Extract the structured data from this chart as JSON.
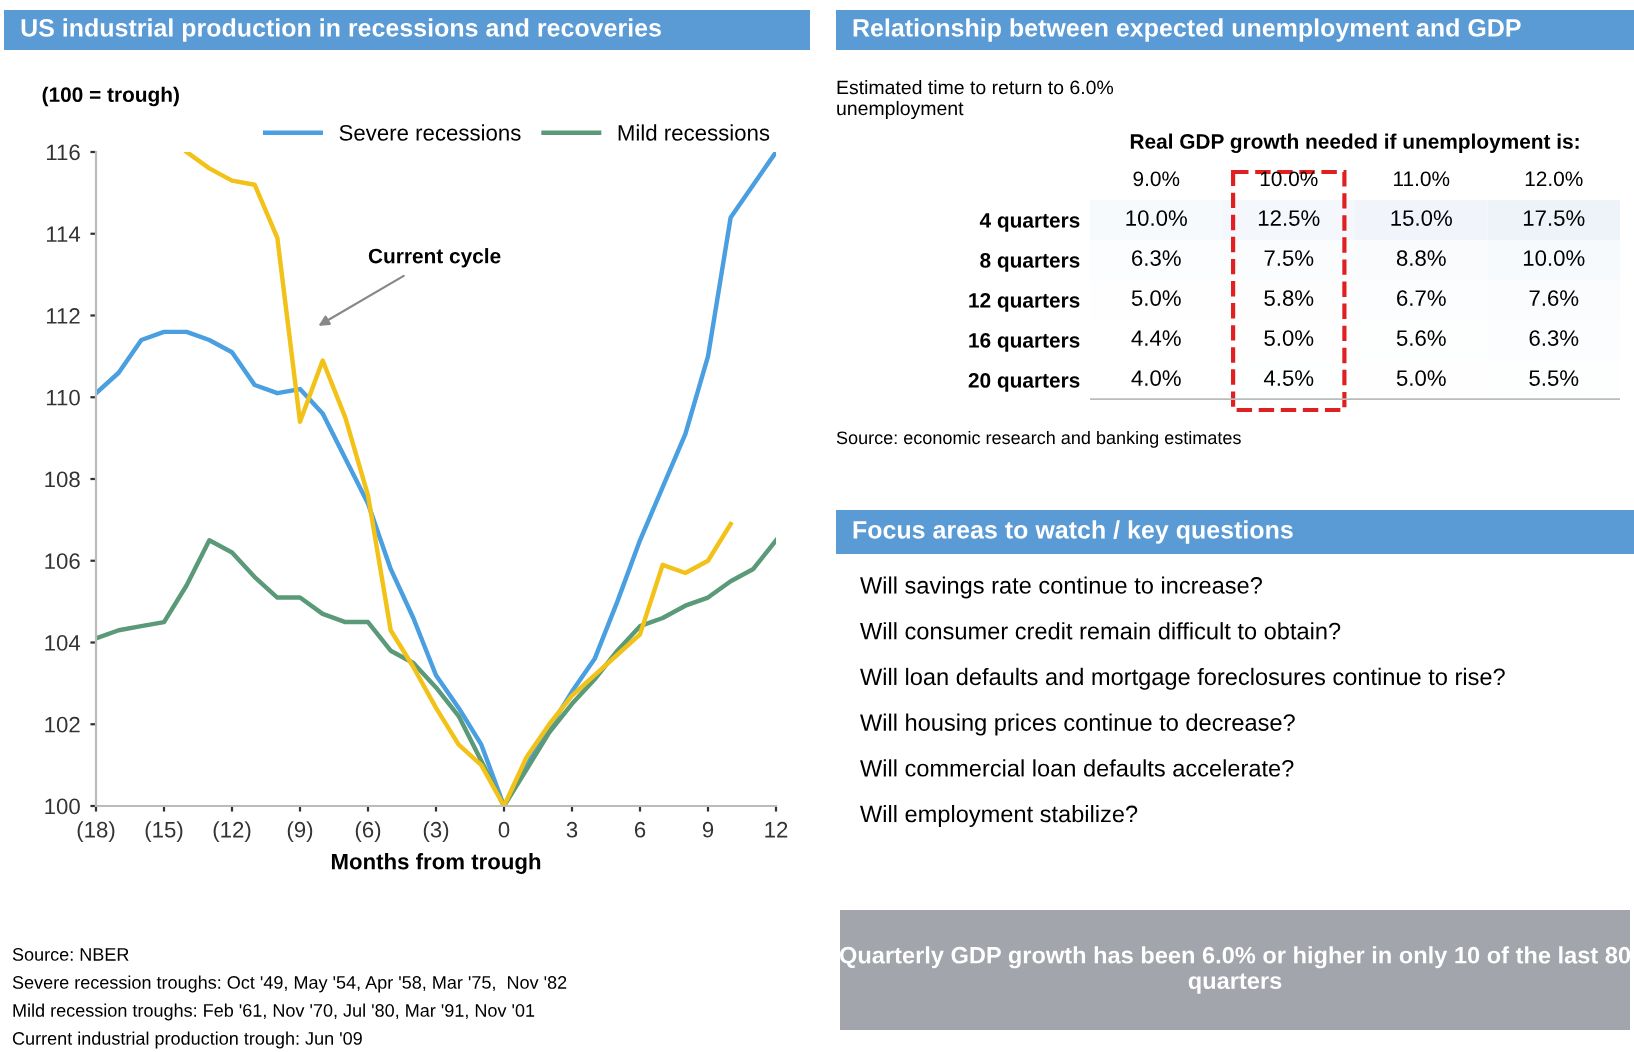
{
  "chart_data": [
    {
      "type": "line",
      "title": "US industrial production in recessions and recoveries",
      "ylabel": "(100 = trough)",
      "xlabel": "Months from trough",
      "x": [
        -18,
        -17,
        -16,
        -15,
        -14,
        -13,
        -12,
        -11,
        -10,
        -9,
        -8,
        -7,
        -6,
        -5,
        -4,
        -3,
        -2,
        -1,
        0,
        1,
        2,
        3,
        4,
        5,
        6,
        7,
        8,
        9,
        10,
        11,
        12
      ],
      "series": [
        {
          "name": "Severe recessions",
          "color": "#4a9fe0",
          "values": [
            110.1,
            110.6,
            111.4,
            111.6,
            111.6,
            111.4,
            111.1,
            110.3,
            110.1,
            110.2,
            109.6,
            108.5,
            107.4,
            105.8,
            104.6,
            103.2,
            102.4,
            101.5,
            100,
            101.0,
            101.9,
            102.8,
            103.6,
            105.0,
            106.5,
            107.8,
            109.1,
            111.0,
            114.4,
            115.2,
            116.0
          ]
        },
        {
          "name": "Mild recessions",
          "color": "#5a9a78",
          "values": [
            104.1,
            104.3,
            104.4,
            104.5,
            105.4,
            106.5,
            106.2,
            105.6,
            105.1,
            105.1,
            104.7,
            104.5,
            104.5,
            103.8,
            103.5,
            102.9,
            102.2,
            101.1,
            100,
            100.9,
            101.8,
            102.5,
            103.1,
            103.8,
            104.4,
            104.6,
            104.9,
            105.1,
            105.5,
            105.8,
            106.5
          ]
        },
        {
          "color": "#f2c218",
          "x": [
            -14,
            -13,
            -12,
            -11,
            -10,
            -9,
            -8,
            -7,
            -6,
            -5,
            -4,
            -3,
            -2,
            -1,
            0,
            1,
            2,
            3,
            4,
            5,
            6,
            7,
            8,
            9,
            10
          ],
          "values": [
            116.0,
            115.6,
            115.3,
            115.2,
            113.9,
            109.4,
            110.9,
            109.5,
            107.6,
            104.3,
            103.4,
            102.4,
            101.5,
            101.0,
            100,
            101.2,
            102.0,
            102.7,
            103.2,
            103.7,
            104.2,
            105.9,
            105.7,
            106.0,
            106.9
          ]
        }
      ],
      "xlim": [
        -18,
        12
      ],
      "ylim": [
        100,
        116
      ],
      "xticks": [
        {
          "value": -18,
          "label": "(18)"
        },
        {
          "value": -15,
          "label": "(15)"
        },
        {
          "value": -12,
          "label": "(12)"
        },
        {
          "value": -9,
          "label": "(9)"
        },
        {
          "value": -6,
          "label": "(6)"
        },
        {
          "value": -3,
          "label": "(3)"
        },
        0,
        3,
        6,
        9,
        12
      ],
      "yticks": [
        100,
        102,
        104,
        106,
        108,
        110,
        112,
        114,
        116
      ],
      "legend": "top",
      "annotations": [
        "Current cycle",
        "Source: NBER",
        "Severe recession troughs: Oct '49, May '54, Apr '58, Mar '75,  Nov '82",
        "Mild recession troughs: Feb '61, Nov '70, Jul '80, Mar '91, Nov '01",
        "Current industrial production trough: Jun '09"
      ]
    },
    {
      "type": "heatmap",
      "title": "Relationship between expected unemployment and GDP",
      "xlabel": "Real GDP growth needed if unemployment is:",
      "ylabel": "Estimated time to return to 6.0% unemployment",
      "categories": [
        "9.0%",
        "10.0%",
        "11.0%",
        "12.0%"
      ],
      "y_categories": [
        "4 quarters",
        "8 quarters",
        "12 quarters",
        "16 quarters",
        "20 quarters"
      ],
      "cells": [
        [
          10.0,
          12.5,
          15.0,
          17.5
        ],
        [
          6.3,
          7.5,
          8.8,
          10.0
        ],
        [
          5.0,
          5.8,
          6.7,
          7.6
        ],
        [
          4.4,
          5.0,
          5.6,
          6.3
        ],
        [
          4.0,
          4.5,
          5.0,
          5.5
        ]
      ],
      "cell_labels": [
        [
          "10.0%",
          "12.5%",
          "15.0%",
          "17.5%"
        ],
        [
          "6.3%",
          "7.5%",
          "8.8%",
          "10.0%"
        ],
        [
          "5.0%",
          "5.8%",
          "6.7%",
          "7.6%"
        ],
        [
          "4.4%",
          "5.0%",
          "5.6%",
          "6.3%"
        ],
        [
          "4.0%",
          "4.5%",
          "5.0%",
          "5.5%"
        ]
      ],
      "color": "#ffffff",
      "annotations": [
        "Source: economic research and banking estimates"
      ]
    },
    {
      "type": "other",
      "title": "Focus areas to watch / key questions",
      "annotations": [
        "Will savings rate continue to increase?",
        "Will consumer credit remain difficult to obtain?",
        "Will loan defaults and mortgage foreclosures continue to rise?",
        "Will housing prices continue to decrease?",
        "Will commercial loan defaults accelerate?",
        "Will employment stabilize?"
      ]
    },
    {
      "type": "other",
      "color": "#a3a5ad",
      "annotations": [
        "Quarterly GDP growth has been 6.0% or higher in only 10 of the last 80 quarters"
      ]
    }
  ]
}
